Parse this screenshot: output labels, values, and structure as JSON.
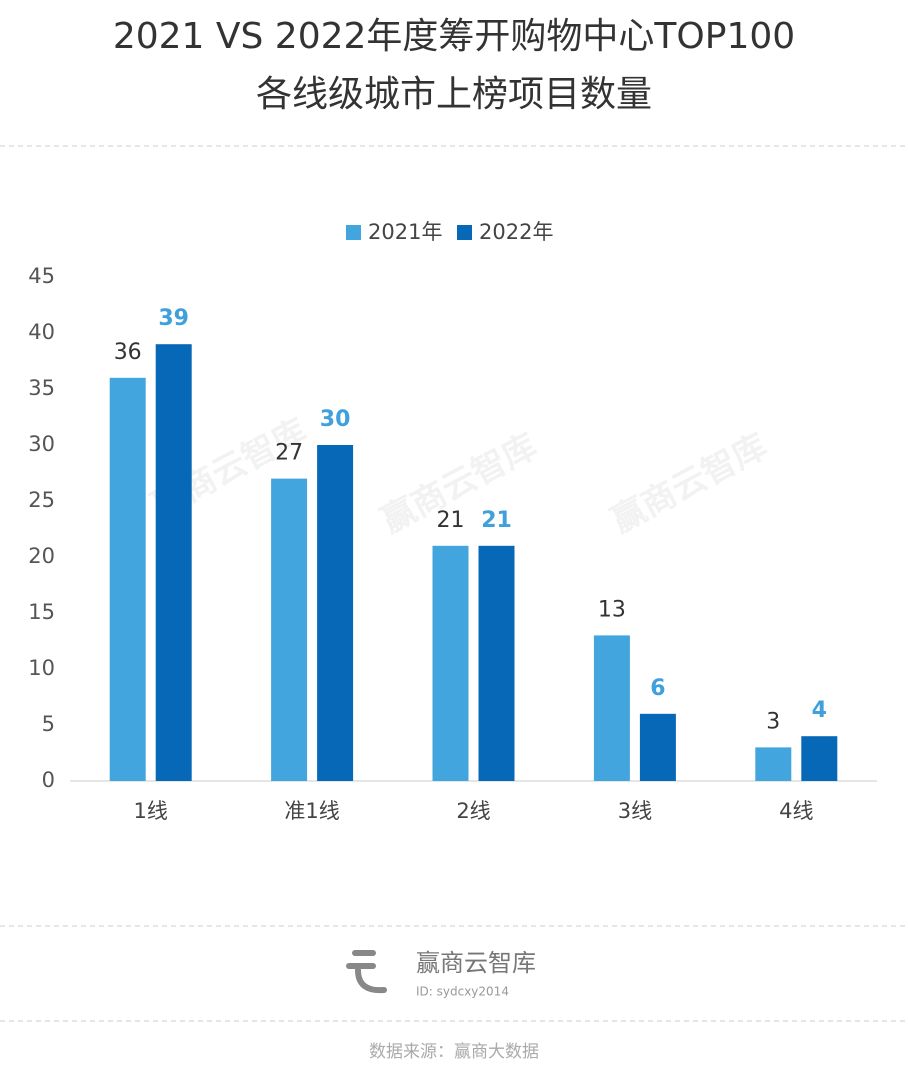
{
  "chart_data": {
    "type": "bar",
    "title": "2021 VS 2022年度筹开购物中心TOP100",
    "subtitle": "各线级城市上榜项目数量",
    "categories": [
      "1线",
      "准1线",
      "2线",
      "3线",
      "4线"
    ],
    "series": [
      {
        "name": "2021年",
        "color": "#42a5de",
        "label_color": "#333333",
        "values": [
          36,
          27,
          21,
          13,
          3
        ]
      },
      {
        "name": "2022年",
        "color": "#0868b8",
        "label_color": "#3fa0dc",
        "values": [
          39,
          30,
          21,
          6,
          4
        ]
      }
    ],
    "ylim": [
      0,
      45
    ],
    "yticks": [
      0,
      5,
      10,
      15,
      20,
      25,
      30,
      35,
      40,
      45
    ],
    "grid": false,
    "legend": "top",
    "watermark": "赢商云智库"
  },
  "footer": {
    "brand": "赢商云智库",
    "id": "ID: sydcxy2014",
    "source": "数据来源：赢商大数据"
  }
}
